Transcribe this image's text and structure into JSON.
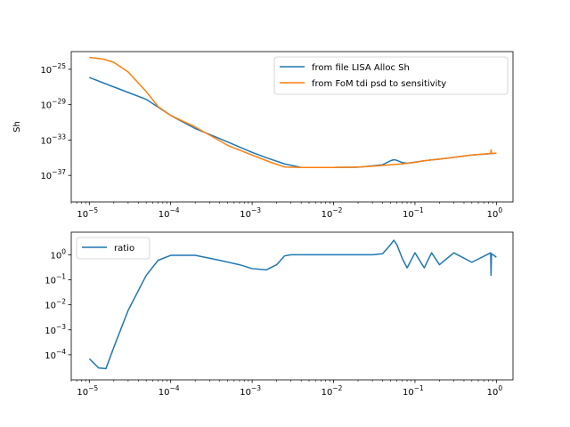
{
  "figure": {
    "background": "#ffffff"
  },
  "chart_data": [
    {
      "type": "line",
      "title": "",
      "xlabel": "",
      "ylabel": "Sh",
      "xscale": "log",
      "yscale": "log",
      "xlim": [
        6e-06,
        1.6
      ],
      "ylim": [
        1e-40,
        1e-23
      ],
      "xticks": [
        {
          "value": 1e-05,
          "base": "10",
          "exp": "−5"
        },
        {
          "value": 0.0001,
          "base": "10",
          "exp": "−4"
        },
        {
          "value": 0.001,
          "base": "10",
          "exp": "−3"
        },
        {
          "value": 0.01,
          "base": "10",
          "exp": "−2"
        },
        {
          "value": 0.1,
          "base": "10",
          "exp": "−1"
        },
        {
          "value": 1,
          "base": "10",
          "exp": "0"
        }
      ],
      "yticks": [
        {
          "value": 1e-25,
          "base": "10",
          "exp": "−25"
        },
        {
          "value": 1e-29,
          "base": "10",
          "exp": "−29"
        },
        {
          "value": 1e-33,
          "base": "10",
          "exp": "−33"
        },
        {
          "value": 1e-37,
          "base": "10",
          "exp": "−37"
        }
      ],
      "legend": {
        "position": "upper-right"
      },
      "grid": false,
      "series": [
        {
          "name": "from file LISA Alloc Sh",
          "color": "#1f77b4",
          "x": [
            1e-05,
            2e-05,
            5e-05,
            0.0001,
            0.0002,
            0.0005,
            0.001,
            0.0015,
            0.0025,
            0.004,
            0.007,
            0.01,
            0.02,
            0.03,
            0.04,
            0.05,
            0.055,
            0.06,
            0.07,
            0.08,
            0.1,
            0.13,
            0.16,
            0.2,
            0.3,
            0.5,
            1
          ],
          "y": [
            1.2e-26,
            1e-27,
            4e-29,
            6e-31,
            2e-32,
            6e-34,
            4e-35,
            1e-35,
            2e-36,
            8e-37,
            8e-37,
            8e-37,
            8.5e-37,
            1.2e-36,
            1.6e-36,
            4.5e-36,
            6e-36,
            5e-36,
            2.8e-36,
            2.4e-36,
            3.2e-36,
            4.5e-36,
            5.6e-36,
            7e-36,
            1.1e-35,
            2e-35,
            3.2e-35
          ]
        },
        {
          "name": "from FoM tdi psd to sensitivity",
          "color": "#ff7f0e",
          "x": [
            1e-05,
            1.5e-05,
            2e-05,
            3e-05,
            5e-05,
            7e-05,
            0.0001,
            0.0002,
            0.0005,
            0.001,
            0.0017,
            0.0025,
            0.004,
            0.007,
            0.01,
            0.02,
            0.03,
            0.05,
            0.07,
            0.1,
            0.13,
            0.16,
            0.2,
            0.3,
            0.5,
            0.85,
            0.86,
            0.87,
            1
          ],
          "y": [
            2.2e-24,
            1.4e-24,
            6e-25,
            5e-26,
            3e-28,
            6e-30,
            6e-31,
            3e-32,
            2.5e-34,
            2e-35,
            3e-36,
            9e-37,
            8e-37,
            8e-37,
            8e-37,
            9e-37,
            1.1e-36,
            1.6e-36,
            2e-36,
            3e-36,
            4.5e-36,
            5.6e-36,
            7e-36,
            1.1e-35,
            2e-35,
            3e-35,
            8e-35,
            3e-35,
            3.3e-35
          ]
        }
      ]
    },
    {
      "type": "line",
      "title": "",
      "xlabel": "",
      "ylabel": "",
      "xscale": "log",
      "yscale": "log",
      "xlim": [
        6e-06,
        1.6
      ],
      "ylim": [
        1e-05,
        8
      ],
      "xticks": [
        {
          "value": 1e-05,
          "base": "10",
          "exp": "−5"
        },
        {
          "value": 0.0001,
          "base": "10",
          "exp": "−4"
        },
        {
          "value": 0.001,
          "base": "10",
          "exp": "−3"
        },
        {
          "value": 0.01,
          "base": "10",
          "exp": "−2"
        },
        {
          "value": 0.1,
          "base": "10",
          "exp": "−1"
        },
        {
          "value": 1,
          "base": "10",
          "exp": "0"
        }
      ],
      "yticks": [
        {
          "value": 0.0001,
          "base": "10",
          "exp": "−4"
        },
        {
          "value": 0.001,
          "base": "10",
          "exp": "−3"
        },
        {
          "value": 0.01,
          "base": "10",
          "exp": "−2"
        },
        {
          "value": 0.1,
          "base": "10",
          "exp": "−1"
        },
        {
          "value": 1,
          "base": "10",
          "exp": "0"
        }
      ],
      "legend": {
        "position": "upper-left"
      },
      "grid": false,
      "series": [
        {
          "name": "ratio",
          "color": "#1f77b4",
          "x": [
            1e-05,
            1.3e-05,
            1.6e-05,
            2e-05,
            3e-05,
            5e-05,
            7e-05,
            0.0001,
            0.0002,
            0.0004,
            0.0007,
            0.001,
            0.0015,
            0.002,
            0.0025,
            0.003,
            0.005,
            0.01,
            0.02,
            0.03,
            0.04,
            0.05,
            0.055,
            0.06,
            0.07,
            0.08,
            0.1,
            0.13,
            0.16,
            0.2,
            0.3,
            0.5,
            0.85,
            0.86,
            0.87,
            1
          ],
          "y": [
            7e-05,
            3e-05,
            2.8e-05,
            0.0002,
            0.006,
            0.15,
            0.6,
            0.95,
            0.95,
            0.6,
            0.4,
            0.28,
            0.25,
            0.4,
            0.9,
            1.0,
            1.0,
            1.0,
            1.0,
            1.0,
            1.1,
            2.5,
            3.8,
            2.5,
            0.7,
            0.3,
            1.2,
            0.3,
            1.2,
            0.4,
            1.2,
            0.5,
            1.2,
            0.15,
            1.1,
            0.8
          ]
        }
      ]
    }
  ]
}
